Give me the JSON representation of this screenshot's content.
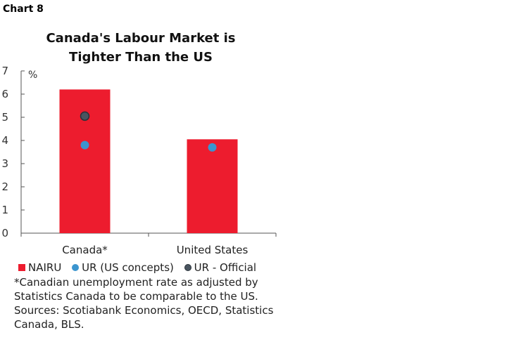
{
  "chart_label": "Chart 8",
  "colors": {
    "bar": "#ed1c2e",
    "us_concepts": "#3b95cf",
    "official": "#4a5560",
    "axis": "#555555"
  },
  "chart_data": {
    "type": "bar",
    "title_lines": [
      "Canada's Labour Market is",
      "Tighter Than the US"
    ],
    "ylabel": "%",
    "ylim": [
      0,
      7
    ],
    "yticks": [
      "0",
      "1",
      "2",
      "3",
      "4",
      "5",
      "6",
      "7"
    ],
    "categories": [
      "Canada*",
      "United States"
    ],
    "series": [
      {
        "name": "NAIRU",
        "kind": "bar",
        "values": [
          6.2,
          4.05
        ]
      },
      {
        "name": "UR (US concepts)",
        "kind": "dot",
        "values": [
          3.8,
          3.7
        ]
      },
      {
        "name": "UR - Official",
        "kind": "dot",
        "values": [
          5.05,
          null
        ]
      }
    ]
  },
  "footnote": [
    "*Canadian unemployment rate as adjusted by",
    "Statistics Canada to be comparable to the US.",
    "Sources: Scotiabank Economics, OECD, Statistics",
    "Canada, BLS."
  ]
}
